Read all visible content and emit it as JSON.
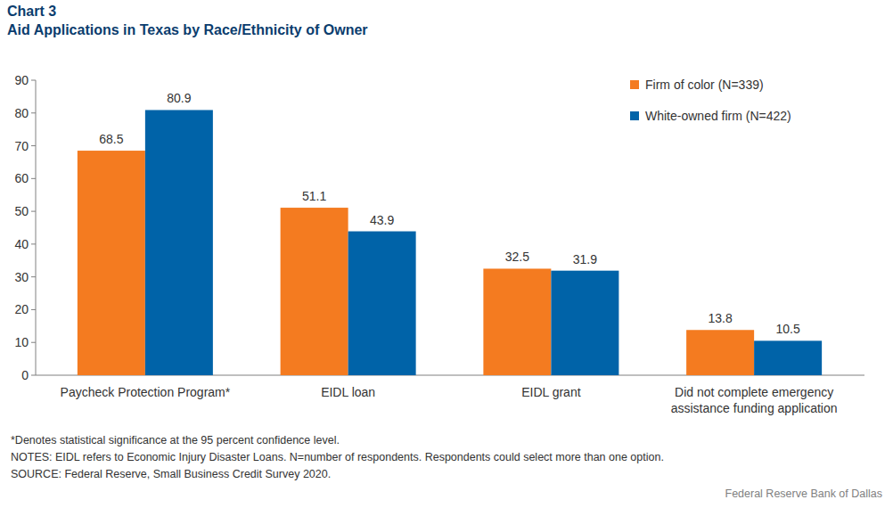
{
  "chart_data": {
    "type": "bar",
    "title": "Chart 3",
    "subtitle": "Aid Applications in Texas by Race/Ethnicity of Owner",
    "categories": [
      "Paycheck Protection Program*",
      "EIDL loan",
      "EIDL grant",
      "Did not complete emergency assistance funding application"
    ],
    "series": [
      {
        "name": "Firm of color (N=339)",
        "color": "#f47b20",
        "values": [
          68.5,
          51.1,
          32.5,
          13.8
        ]
      },
      {
        "name": "White-owned firm (N=422)",
        "color": "#0063a8",
        "values": [
          80.9,
          43.9,
          31.9,
          10.5
        ]
      }
    ],
    "ylim": [
      0,
      90
    ],
    "yticks": [
      0,
      10,
      20,
      30,
      40,
      50,
      60,
      70,
      80,
      90
    ],
    "grid": false,
    "legend": "top-right",
    "data_labels": true,
    "notes": [
      "*Denotes statistical significance at the 95 percent confidence level.",
      "NOTES: EIDL refers to Economic Injury Disaster Loans. N=number of respondents. Respondents could select more than one option.",
      "SOURCE: Federal Reserve, Small Business Credit Survey 2020."
    ],
    "credit": "Federal Reserve Bank of Dallas"
  }
}
